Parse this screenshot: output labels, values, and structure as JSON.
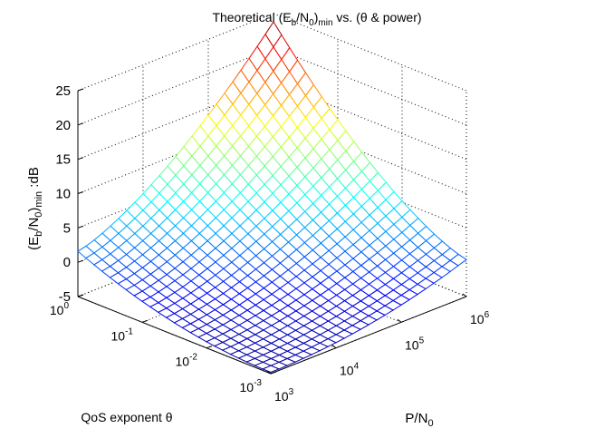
{
  "chart_data": {
    "type": "surface",
    "title": {
      "prefix": "Theoretical (E",
      "sub1": "b",
      "mid1": "/N",
      "sub2": "0",
      "mid2": ")",
      "sub3": "min",
      "suffix": " vs. (θ & power)"
    },
    "zlabel": {
      "prefix": "(E",
      "sub1": "b",
      "mid1": "/N",
      "sub2": "0",
      "mid2": ")",
      "sub3": "min",
      "suffix": " :dB"
    },
    "xlabel": {
      "prefix": "P/N",
      "sub": "0"
    },
    "ylabel": "QoS exponent θ",
    "x_ticks": [
      {
        "base": "10",
        "exp": "3",
        "log": 3
      },
      {
        "base": "10",
        "exp": "4",
        "log": 4
      },
      {
        "base": "10",
        "exp": "5",
        "log": 5
      },
      {
        "base": "10",
        "exp": "6",
        "log": 6
      }
    ],
    "y_ticks": [
      {
        "base": "10",
        "exp": "-3",
        "log": -3
      },
      {
        "base": "10",
        "exp": "-2",
        "log": -2
      },
      {
        "base": "10",
        "exp": "-1",
        "log": -1
      },
      {
        "base": "10",
        "exp": "0",
        "log": 0
      }
    ],
    "z_ticks": [
      "-5",
      "0",
      "5",
      "10",
      "15",
      "20",
      "25"
    ],
    "x_range_log10": [
      3,
      6
    ],
    "y_range_log10": [
      -3,
      0
    ],
    "z_range": [
      -5,
      25
    ],
    "grid": true,
    "colormap": "jet",
    "mesh_size": 24,
    "corner_values_dB": {
      "P_1e3_theta_1e-3": -4.8,
      "P_1e6_theta_1e-3": 0.4,
      "P_1e3_theta_1e0": 1.6,
      "P_1e6_theta_1e0": 23.8
    }
  }
}
